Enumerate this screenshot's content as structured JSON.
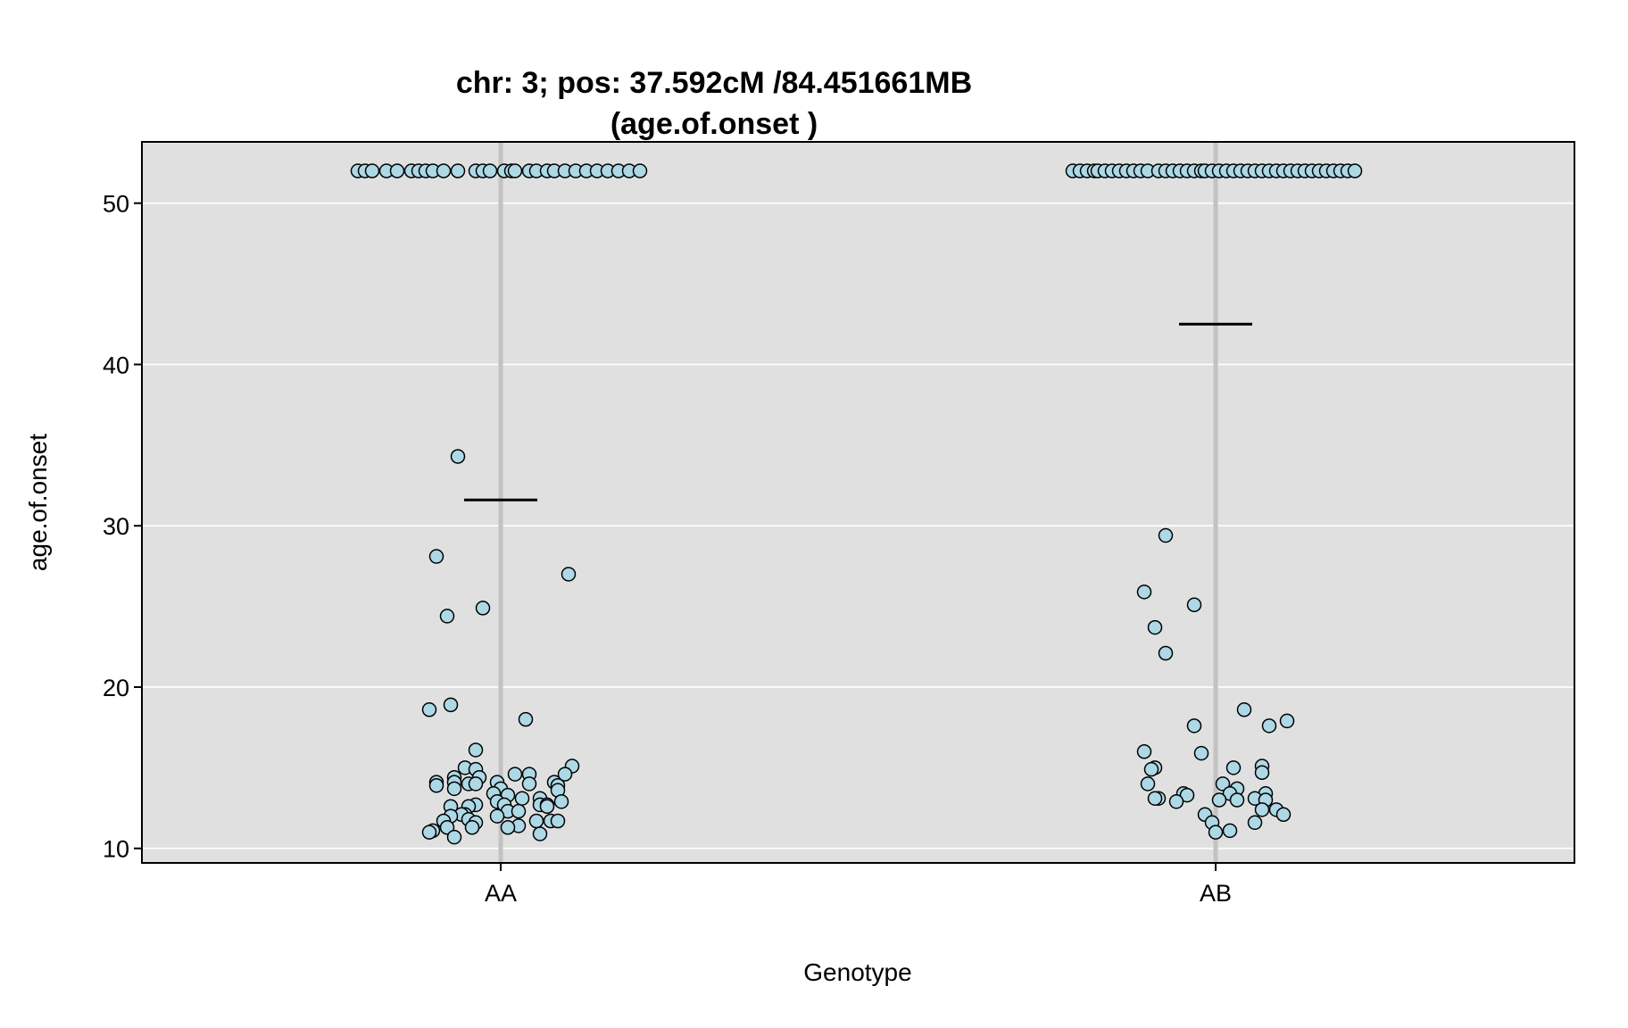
{
  "chart_data": {
    "type": "scatter",
    "title": "chr: 3; pos: 37.592cM /84.451661MB",
    "subtitle": "(age.of.onset )",
    "xlabel": "Genotype",
    "ylabel": "age.of.onset",
    "ylim": [
      9.1,
      53.8
    ],
    "yticks": [
      "10",
      "20",
      "30",
      "40",
      "50"
    ],
    "grid": true,
    "colors": {
      "panel": "#e0e0e0",
      "grid": "#ffffff",
      "center_line": "#c2c2c2",
      "point_fill": "#add8e6",
      "point_stroke": "#000000",
      "mean": "#000000"
    },
    "categories": [
      "AA",
      "AB"
    ],
    "groups": [
      {
        "category": "AA",
        "mean": 31.6,
        "points": [
          {
            "x": -0.4,
            "y": 52
          },
          {
            "x": -0.38,
            "y": 52
          },
          {
            "x": -0.36,
            "y": 52
          },
          {
            "x": -0.32,
            "y": 52
          },
          {
            "x": -0.29,
            "y": 52
          },
          {
            "x": -0.25,
            "y": 52
          },
          {
            "x": -0.23,
            "y": 52
          },
          {
            "x": -0.21,
            "y": 52
          },
          {
            "x": -0.19,
            "y": 52
          },
          {
            "x": -0.16,
            "y": 52
          },
          {
            "x": -0.12,
            "y": 52
          },
          {
            "x": -0.07,
            "y": 52
          },
          {
            "x": -0.05,
            "y": 52
          },
          {
            "x": -0.03,
            "y": 52
          },
          {
            "x": 0.01,
            "y": 52
          },
          {
            "x": 0.03,
            "y": 52
          },
          {
            "x": 0.04,
            "y": 52
          },
          {
            "x": 0.08,
            "y": 52
          },
          {
            "x": 0.1,
            "y": 52
          },
          {
            "x": 0.13,
            "y": 52
          },
          {
            "x": 0.15,
            "y": 52
          },
          {
            "x": 0.18,
            "y": 52
          },
          {
            "x": 0.21,
            "y": 52
          },
          {
            "x": 0.24,
            "y": 52
          },
          {
            "x": 0.27,
            "y": 52
          },
          {
            "x": 0.3,
            "y": 52
          },
          {
            "x": 0.33,
            "y": 52
          },
          {
            "x": 0.36,
            "y": 52
          },
          {
            "x": 0.39,
            "y": 52
          },
          {
            "x": -0.12,
            "y": 34.3
          },
          {
            "x": -0.18,
            "y": 28.1
          },
          {
            "x": -0.15,
            "y": 24.4
          },
          {
            "x": -0.05,
            "y": 24.9
          },
          {
            "x": 0.19,
            "y": 27.0
          },
          {
            "x": -0.14,
            "y": 18.9
          },
          {
            "x": -0.2,
            "y": 18.6
          },
          {
            "x": 0.07,
            "y": 18.0
          },
          {
            "x": -0.07,
            "y": 16.1
          },
          {
            "x": 0.2,
            "y": 15.1
          },
          {
            "x": -0.1,
            "y": 15.0
          },
          {
            "x": -0.07,
            "y": 14.9
          },
          {
            "x": 0.18,
            "y": 14.6
          },
          {
            "x": 0.04,
            "y": 14.6
          },
          {
            "x": 0.08,
            "y": 14.6
          },
          {
            "x": -0.13,
            "y": 14.4
          },
          {
            "x": -0.06,
            "y": 14.4
          },
          {
            "x": -0.18,
            "y": 14.1
          },
          {
            "x": -0.13,
            "y": 14.1
          },
          {
            "x": -0.01,
            "y": 14.1
          },
          {
            "x": 0.15,
            "y": 14.1
          },
          {
            "x": -0.09,
            "y": 14.0
          },
          {
            "x": -0.07,
            "y": 14.0
          },
          {
            "x": 0.08,
            "y": 14.0
          },
          {
            "x": -0.18,
            "y": 13.9
          },
          {
            "x": 0.16,
            "y": 13.9
          },
          {
            "x": -0.13,
            "y": 13.7
          },
          {
            "x": 0.0,
            "y": 13.7
          },
          {
            "x": 0.16,
            "y": 13.6
          },
          {
            "x": -0.02,
            "y": 13.4
          },
          {
            "x": 0.02,
            "y": 13.3
          },
          {
            "x": 0.06,
            "y": 13.1
          },
          {
            "x": 0.11,
            "y": 13.1
          },
          {
            "x": -0.01,
            "y": 12.9
          },
          {
            "x": 0.17,
            "y": 12.9
          },
          {
            "x": -0.07,
            "y": 12.7
          },
          {
            "x": 0.01,
            "y": 12.7
          },
          {
            "x": 0.11,
            "y": 12.7
          },
          {
            "x": 0.13,
            "y": 12.7
          },
          {
            "x": -0.09,
            "y": 12.6
          },
          {
            "x": -0.14,
            "y": 12.6
          },
          {
            "x": 0.13,
            "y": 12.6
          },
          {
            "x": 0.02,
            "y": 12.3
          },
          {
            "x": 0.05,
            "y": 12.3
          },
          {
            "x": -0.1,
            "y": 12.1
          },
          {
            "x": -0.11,
            "y": 12.1
          },
          {
            "x": -0.01,
            "y": 12.0
          },
          {
            "x": -0.14,
            "y": 12.0
          },
          {
            "x": -0.16,
            "y": 11.7
          },
          {
            "x": -0.09,
            "y": 11.8
          },
          {
            "x": -0.07,
            "y": 11.6
          },
          {
            "x": 0.1,
            "y": 11.7
          },
          {
            "x": 0.14,
            "y": 11.7
          },
          {
            "x": 0.16,
            "y": 11.7
          },
          {
            "x": 0.05,
            "y": 11.4
          },
          {
            "x": -0.15,
            "y": 11.3
          },
          {
            "x": 0.02,
            "y": 11.3
          },
          {
            "x": -0.08,
            "y": 11.3
          },
          {
            "x": -0.19,
            "y": 11.1
          },
          {
            "x": -0.2,
            "y": 11.0
          },
          {
            "x": 0.11,
            "y": 10.9
          },
          {
            "x": -0.13,
            "y": 10.7
          }
        ]
      },
      {
        "category": "AB",
        "mean": 42.5,
        "points": [
          {
            "x": -0.4,
            "y": 52
          },
          {
            "x": -0.38,
            "y": 52
          },
          {
            "x": -0.36,
            "y": 52
          },
          {
            "x": -0.34,
            "y": 52
          },
          {
            "x": -0.33,
            "y": 52
          },
          {
            "x": -0.31,
            "y": 52
          },
          {
            "x": -0.29,
            "y": 52
          },
          {
            "x": -0.27,
            "y": 52
          },
          {
            "x": -0.25,
            "y": 52
          },
          {
            "x": -0.23,
            "y": 52
          },
          {
            "x": -0.21,
            "y": 52
          },
          {
            "x": -0.19,
            "y": 52
          },
          {
            "x": -0.16,
            "y": 52
          },
          {
            "x": -0.14,
            "y": 52
          },
          {
            "x": -0.12,
            "y": 52
          },
          {
            "x": -0.1,
            "y": 52
          },
          {
            "x": -0.08,
            "y": 52
          },
          {
            "x": -0.06,
            "y": 52
          },
          {
            "x": -0.04,
            "y": 52
          },
          {
            "x": -0.03,
            "y": 52
          },
          {
            "x": -0.01,
            "y": 52
          },
          {
            "x": 0.01,
            "y": 52
          },
          {
            "x": 0.03,
            "y": 52
          },
          {
            "x": 0.05,
            "y": 52
          },
          {
            "x": 0.07,
            "y": 52
          },
          {
            "x": 0.09,
            "y": 52
          },
          {
            "x": 0.11,
            "y": 52
          },
          {
            "x": 0.13,
            "y": 52
          },
          {
            "x": 0.15,
            "y": 52
          },
          {
            "x": 0.17,
            "y": 52
          },
          {
            "x": 0.19,
            "y": 52
          },
          {
            "x": 0.21,
            "y": 52
          },
          {
            "x": 0.23,
            "y": 52
          },
          {
            "x": 0.25,
            "y": 52
          },
          {
            "x": 0.27,
            "y": 52
          },
          {
            "x": 0.29,
            "y": 52
          },
          {
            "x": 0.31,
            "y": 52
          },
          {
            "x": 0.33,
            "y": 52
          },
          {
            "x": 0.35,
            "y": 52
          },
          {
            "x": 0.37,
            "y": 52
          },
          {
            "x": 0.39,
            "y": 52
          },
          {
            "x": -0.14,
            "y": 29.4
          },
          {
            "x": -0.2,
            "y": 25.9
          },
          {
            "x": -0.06,
            "y": 25.1
          },
          {
            "x": -0.17,
            "y": 23.7
          },
          {
            "x": -0.14,
            "y": 22.1
          },
          {
            "x": 0.08,
            "y": 18.6
          },
          {
            "x": 0.2,
            "y": 17.9
          },
          {
            "x": 0.15,
            "y": 17.6
          },
          {
            "x": -0.06,
            "y": 17.6
          },
          {
            "x": -0.2,
            "y": 16.0
          },
          {
            "x": -0.04,
            "y": 15.9
          },
          {
            "x": 0.13,
            "y": 15.1
          },
          {
            "x": -0.17,
            "y": 15.0
          },
          {
            "x": -0.18,
            "y": 14.9
          },
          {
            "x": 0.05,
            "y": 15.0
          },
          {
            "x": 0.13,
            "y": 14.7
          },
          {
            "x": -0.19,
            "y": 14.0
          },
          {
            "x": 0.02,
            "y": 14.0
          },
          {
            "x": 0.06,
            "y": 13.7
          },
          {
            "x": 0.04,
            "y": 13.4
          },
          {
            "x": 0.14,
            "y": 13.4
          },
          {
            "x": -0.09,
            "y": 13.4
          },
          {
            "x": -0.08,
            "y": 13.3
          },
          {
            "x": -0.16,
            "y": 13.1
          },
          {
            "x": -0.17,
            "y": 13.1
          },
          {
            "x": 0.11,
            "y": 13.1
          },
          {
            "x": 0.01,
            "y": 13.0
          },
          {
            "x": 0.06,
            "y": 13.0
          },
          {
            "x": 0.14,
            "y": 13.0
          },
          {
            "x": -0.11,
            "y": 12.9
          },
          {
            "x": 0.13,
            "y": 12.4
          },
          {
            "x": 0.17,
            "y": 12.4
          },
          {
            "x": -0.03,
            "y": 12.1
          },
          {
            "x": 0.19,
            "y": 12.1
          },
          {
            "x": -0.01,
            "y": 11.6
          },
          {
            "x": 0.11,
            "y": 11.6
          },
          {
            "x": 0.0,
            "y": 11.0
          },
          {
            "x": 0.04,
            "y": 11.1
          }
        ]
      }
    ]
  }
}
